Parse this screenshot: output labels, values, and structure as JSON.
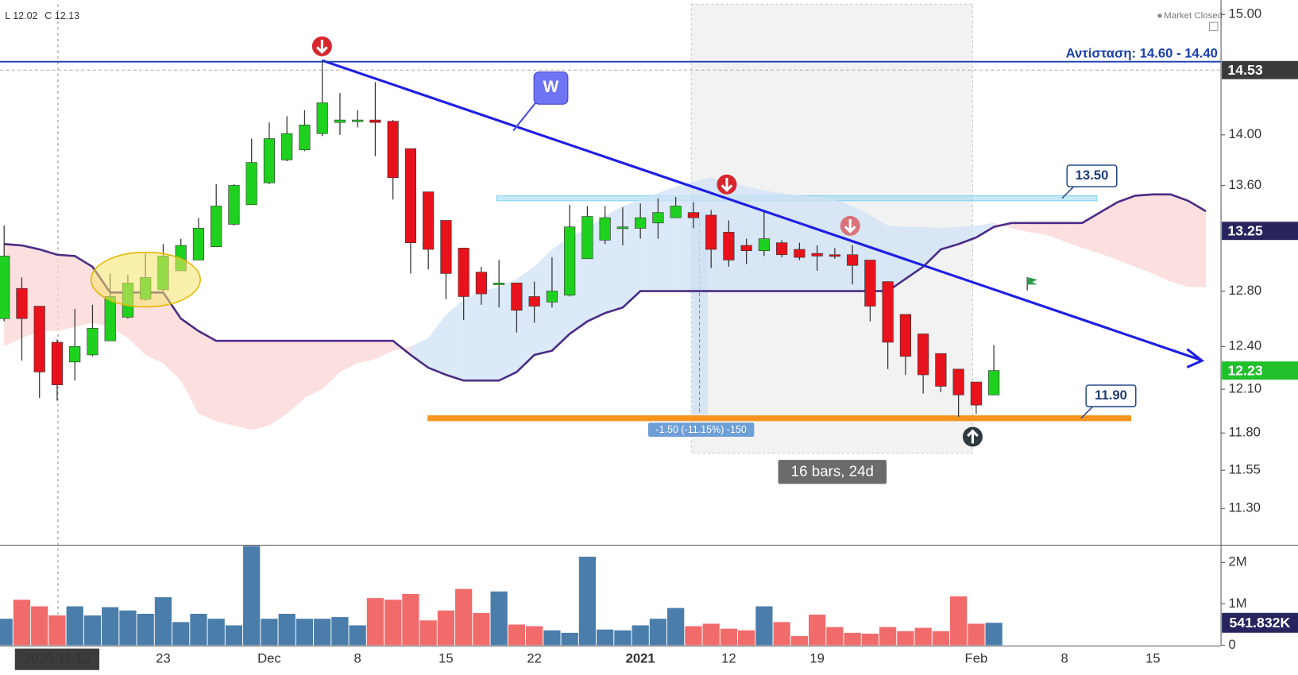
{
  "chart_data": {
    "type": "candlestick",
    "ohlc_legend": [
      "L 12.02",
      "C 12.13"
    ],
    "status": "Market Closed",
    "categories": [
      null,
      null,
      null,
      "2020-11-13",
      null,
      null,
      null,
      null,
      null,
      "23",
      null,
      null,
      null,
      null,
      null,
      "Dec",
      null,
      null,
      null,
      null,
      "8",
      null,
      null,
      null,
      null,
      "15",
      null,
      null,
      null,
      null,
      "22",
      null,
      null,
      null,
      null,
      null,
      "2021",
      null,
      null,
      null,
      null,
      "12",
      null,
      null,
      null,
      null,
      "19",
      null,
      null,
      null,
      null,
      null,
      null,
      null,
      null,
      "Feb",
      null,
      null,
      null,
      null,
      "8",
      null,
      null,
      null,
      null,
      "15",
      null,
      null,
      null
    ],
    "open": [
      12.6,
      12.82,
      12.69,
      12.43,
      12.29,
      12.34,
      12.44,
      12.61,
      12.74,
      12.81,
      12.95,
      13.03,
      13.13,
      13.3,
      13.45,
      13.62,
      13.8,
      13.88,
      14.01,
      14.1,
      14.11,
      14.12,
      14.11,
      13.89,
      13.55,
      13.33,
      13.12,
      12.94,
      12.86,
      12.86,
      12.76,
      12.72,
      12.77,
      13.04,
      13.18,
      13.27,
      13.27,
      13.31,
      13.35,
      13.39,
      13.37,
      13.24,
      13.14,
      13.1,
      13.16,
      13.11,
      13.08,
      13.07,
      13.07,
      13.03,
      12.87,
      12.63,
      12.49,
      12.35,
      12.24,
      12.15,
      12.06,
      null,
      null,
      null,
      null,
      null,
      null,
      null,
      null,
      null,
      null,
      null,
      null
    ],
    "high": [
      13.29,
      12.9,
      12.69,
      12.45,
      12.67,
      12.7,
      12.93,
      12.92,
      13.08,
      13.15,
      13.19,
      13.35,
      13.61,
      13.61,
      13.97,
      14.1,
      14.15,
      14.2,
      14.61,
      14.34,
      14.2,
      14.43,
      14.12,
      13.89,
      13.55,
      13.33,
      13.12,
      12.98,
      13.03,
      12.86,
      12.87,
      13.05,
      13.45,
      13.44,
      13.44,
      13.43,
      13.46,
      13.5,
      13.51,
      13.47,
      13.41,
      13.33,
      13.19,
      13.4,
      13.18,
      13.16,
      13.14,
      13.12,
      13.14,
      13.03,
      12.87,
      12.63,
      12.49,
      12.35,
      12.24,
      12.15,
      12.41,
      null,
      null,
      null,
      null,
      null,
      null,
      null,
      null,
      null,
      null,
      null,
      null
    ],
    "low": [
      12.58,
      12.3,
      12.04,
      12.02,
      12.16,
      12.33,
      12.44,
      12.6,
      12.73,
      12.8,
      12.95,
      13.03,
      13.13,
      13.29,
      13.45,
      13.61,
      13.79,
      13.87,
      13.99,
      14.0,
      14.06,
      13.83,
      13.49,
      12.93,
      12.96,
      12.74,
      12.59,
      12.7,
      12.68,
      12.5,
      12.57,
      12.68,
      12.76,
      13.04,
      13.15,
      13.14,
      13.19,
      13.19,
      13.35,
      13.27,
      12.97,
      12.98,
      13.0,
      13.06,
      13.05,
      13.03,
      12.95,
      13.04,
      12.85,
      12.58,
      12.24,
      12.2,
      12.07,
      12.08,
      11.91,
      11.93,
      12.06,
      null,
      null,
      null,
      null,
      null,
      null,
      null,
      null,
      null,
      null,
      null,
      null
    ],
    "close": [
      13.06,
      12.6,
      12.22,
      12.13,
      12.4,
      12.53,
      12.76,
      12.86,
      12.9,
      13.06,
      13.14,
      13.27,
      13.44,
      13.6,
      13.78,
      13.97,
      14.01,
      14.08,
      14.26,
      14.12,
      14.12,
      14.1,
      13.66,
      13.16,
      13.11,
      12.93,
      12.76,
      12.78,
      12.86,
      12.66,
      12.69,
      12.8,
      13.28,
      13.36,
      13.35,
      13.28,
      13.35,
      13.39,
      13.44,
      13.35,
      13.11,
      13.03,
      13.1,
      13.19,
      13.07,
      13.05,
      13.06,
      13.06,
      12.99,
      12.69,
      12.43,
      12.33,
      12.2,
      12.12,
      12.06,
      11.99,
      12.23,
      null,
      null,
      null,
      null,
      null,
      null,
      null,
      null,
      null,
      null,
      null,
      null
    ],
    "up_color": "#1fd11f",
    "down_color": "#e8121c",
    "log_scale": true,
    "grid": false,
    "ylim": [
      11.07,
      15.09
    ],
    "yticks": [
      {
        "value": 15,
        "label": "15.00"
      },
      {
        "value": 14,
        "label": "14.00"
      },
      {
        "value": 13.6,
        "label": "13.60"
      },
      {
        "value": 12.8,
        "label": "12.80"
      },
      {
        "value": 12.4,
        "label": "12.40"
      },
      {
        "value": 12.1,
        "label": "12.10"
      },
      {
        "value": 11.8,
        "label": "11.80"
      },
      {
        "value": 11.55,
        "label": "11.55"
      },
      {
        "value": 11.3,
        "label": "11.30"
      }
    ],
    "series": [
      {
        "color": "#4b2c86",
        "values": [
          13.15,
          13.14,
          13.11,
          13.07,
          13.06,
          12.98,
          12.79,
          12.79,
          12.79,
          12.79,
          12.6,
          12.51,
          12.44,
          12.44,
          12.44,
          12.44,
          12.44,
          12.44,
          12.44,
          12.44,
          12.44,
          12.44,
          12.44,
          12.34,
          12.25,
          12.2,
          12.16,
          12.16,
          12.16,
          12.22,
          12.34,
          12.37,
          12.49,
          12.58,
          12.64,
          12.68,
          12.8,
          12.8,
          12.8,
          12.8,
          12.8,
          12.8,
          12.8,
          12.8,
          12.8,
          12.8,
          12.8,
          12.8,
          12.8,
          12.8,
          12.8,
          12.89,
          12.98,
          13.11,
          13.15,
          13.2,
          13.28,
          13.31,
          13.31,
          13.31,
          13.31,
          13.31,
          13.39,
          13.47,
          13.52,
          13.53,
          13.53,
          13.48,
          13.4
        ]
      },
      {
        "values": [
          12.4,
          12.46,
          12.51,
          12.51,
          12.54,
          12.57,
          12.54,
          12.46,
          12.34,
          12.28,
          12.16,
          11.93,
          11.88,
          11.85,
          11.82,
          11.85,
          11.93,
          12.04,
          12.1,
          12.22,
          12.28,
          12.31,
          12.37,
          12.4,
          12.46,
          12.63,
          12.74,
          12.8,
          12.83,
          12.89,
          12.98,
          13.11,
          13.2,
          13.27,
          13.36,
          13.44,
          13.49,
          13.54,
          13.59,
          13.63,
          13.66,
          13.63,
          13.59,
          13.56,
          13.54,
          13.52,
          13.51,
          13.49,
          13.44,
          13.37,
          13.29,
          13.28,
          13.28,
          13.27,
          13.28,
          13.29,
          13.31,
          13.27,
          13.24,
          13.22,
          13.17,
          13.12,
          13.08,
          13.03,
          12.98,
          12.93,
          12.87,
          12.83,
          12.83
        ]
      }
    ],
    "cloud": {
      "up_color": "#cfe2f6",
      "down_color": "#fbd4d4"
    },
    "resistance": {
      "label": "Αντίσταση: 14.60 - 14.40",
      "value": 14.6,
      "color": "#1a3fb0"
    },
    "levels": [
      {
        "value": 13.5,
        "label": "13.50",
        "color": "#7fd3f2"
      },
      {
        "value": 11.9,
        "label": "11.90",
        "color": "#f7941d"
      }
    ],
    "price_badges": [
      {
        "value": 14.53,
        "color": "#3a3a3a",
        "line": "dashed"
      },
      {
        "value": 13.25,
        "color": "#27245e"
      },
      {
        "value": 12.23,
        "color": "#1fc02a"
      }
    ],
    "callout": "W",
    "measure": {
      "label": "-1.50 (-11.15%) -150",
      "bars_label": "16 bars, 24d"
    },
    "volume": {
      "values": [
        640000,
        1100000,
        940000,
        720000,
        940000,
        720000,
        920000,
        840000,
        760000,
        1160000,
        560000,
        760000,
        640000,
        480000,
        2400000,
        640000,
        760000,
        640000,
        640000,
        680000,
        480000,
        1140000,
        1100000,
        1240000,
        600000,
        840000,
        1360000,
        780000,
        1300000,
        500000,
        460000,
        360000,
        300000,
        2140000,
        380000,
        360000,
        480000,
        640000,
        900000,
        460000,
        520000,
        400000,
        360000,
        940000,
        560000,
        220000,
        740000,
        440000,
        300000,
        280000,
        440000,
        340000,
        420000,
        340000,
        1180000,
        520000,
        541832,
        null,
        null,
        null,
        null,
        null,
        null,
        null,
        null,
        null,
        null,
        null,
        null
      ],
      "up_color": "#4a7daa",
      "down_color": "#f26b6b",
      "ylim": [
        0,
        2400000
      ],
      "yticks": [
        0,
        {
          "value": 1000000,
          "label": "1M"
        },
        {
          "value": 2000000,
          "label": "2M"
        }
      ],
      "badge": {
        "value": 541832,
        "label": "541.832K",
        "color": "#27245e"
      }
    }
  }
}
